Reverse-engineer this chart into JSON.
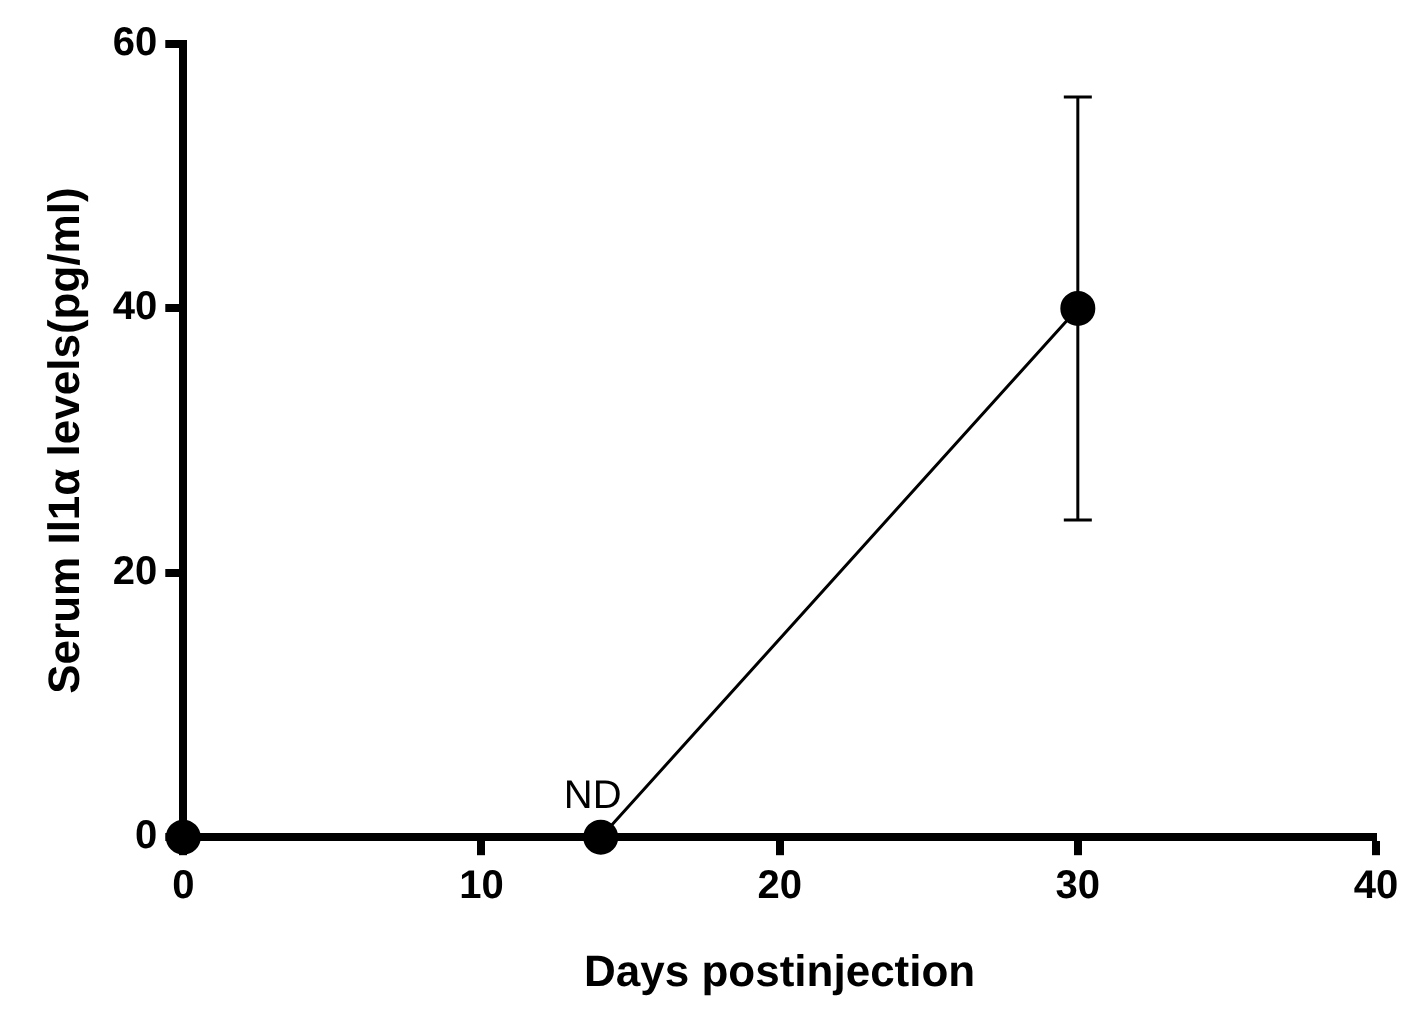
{
  "chart_data": {
    "type": "line",
    "xlabel": "Days postinjection",
    "ylabel": "Serum Il1α levels(pg/ml)",
    "x": [
      0,
      14,
      30
    ],
    "series": [
      {
        "color": "#000000",
        "values": [
          0,
          0,
          40
        ],
        "errors": [
          null,
          null,
          [
            24,
            56
          ]
        ]
      }
    ],
    "xlim": [
      0,
      40
    ],
    "xticks": [
      0,
      10,
      20,
      30,
      40
    ],
    "ylim": [
      0,
      60
    ],
    "yticks": [
      0,
      20,
      40,
      60
    ],
    "marker": "circle",
    "line_style": "solid",
    "legend": false,
    "grid": false,
    "annotations": [
      {
        "text": "ND",
        "x": 14,
        "y": 0
      }
    ]
  }
}
